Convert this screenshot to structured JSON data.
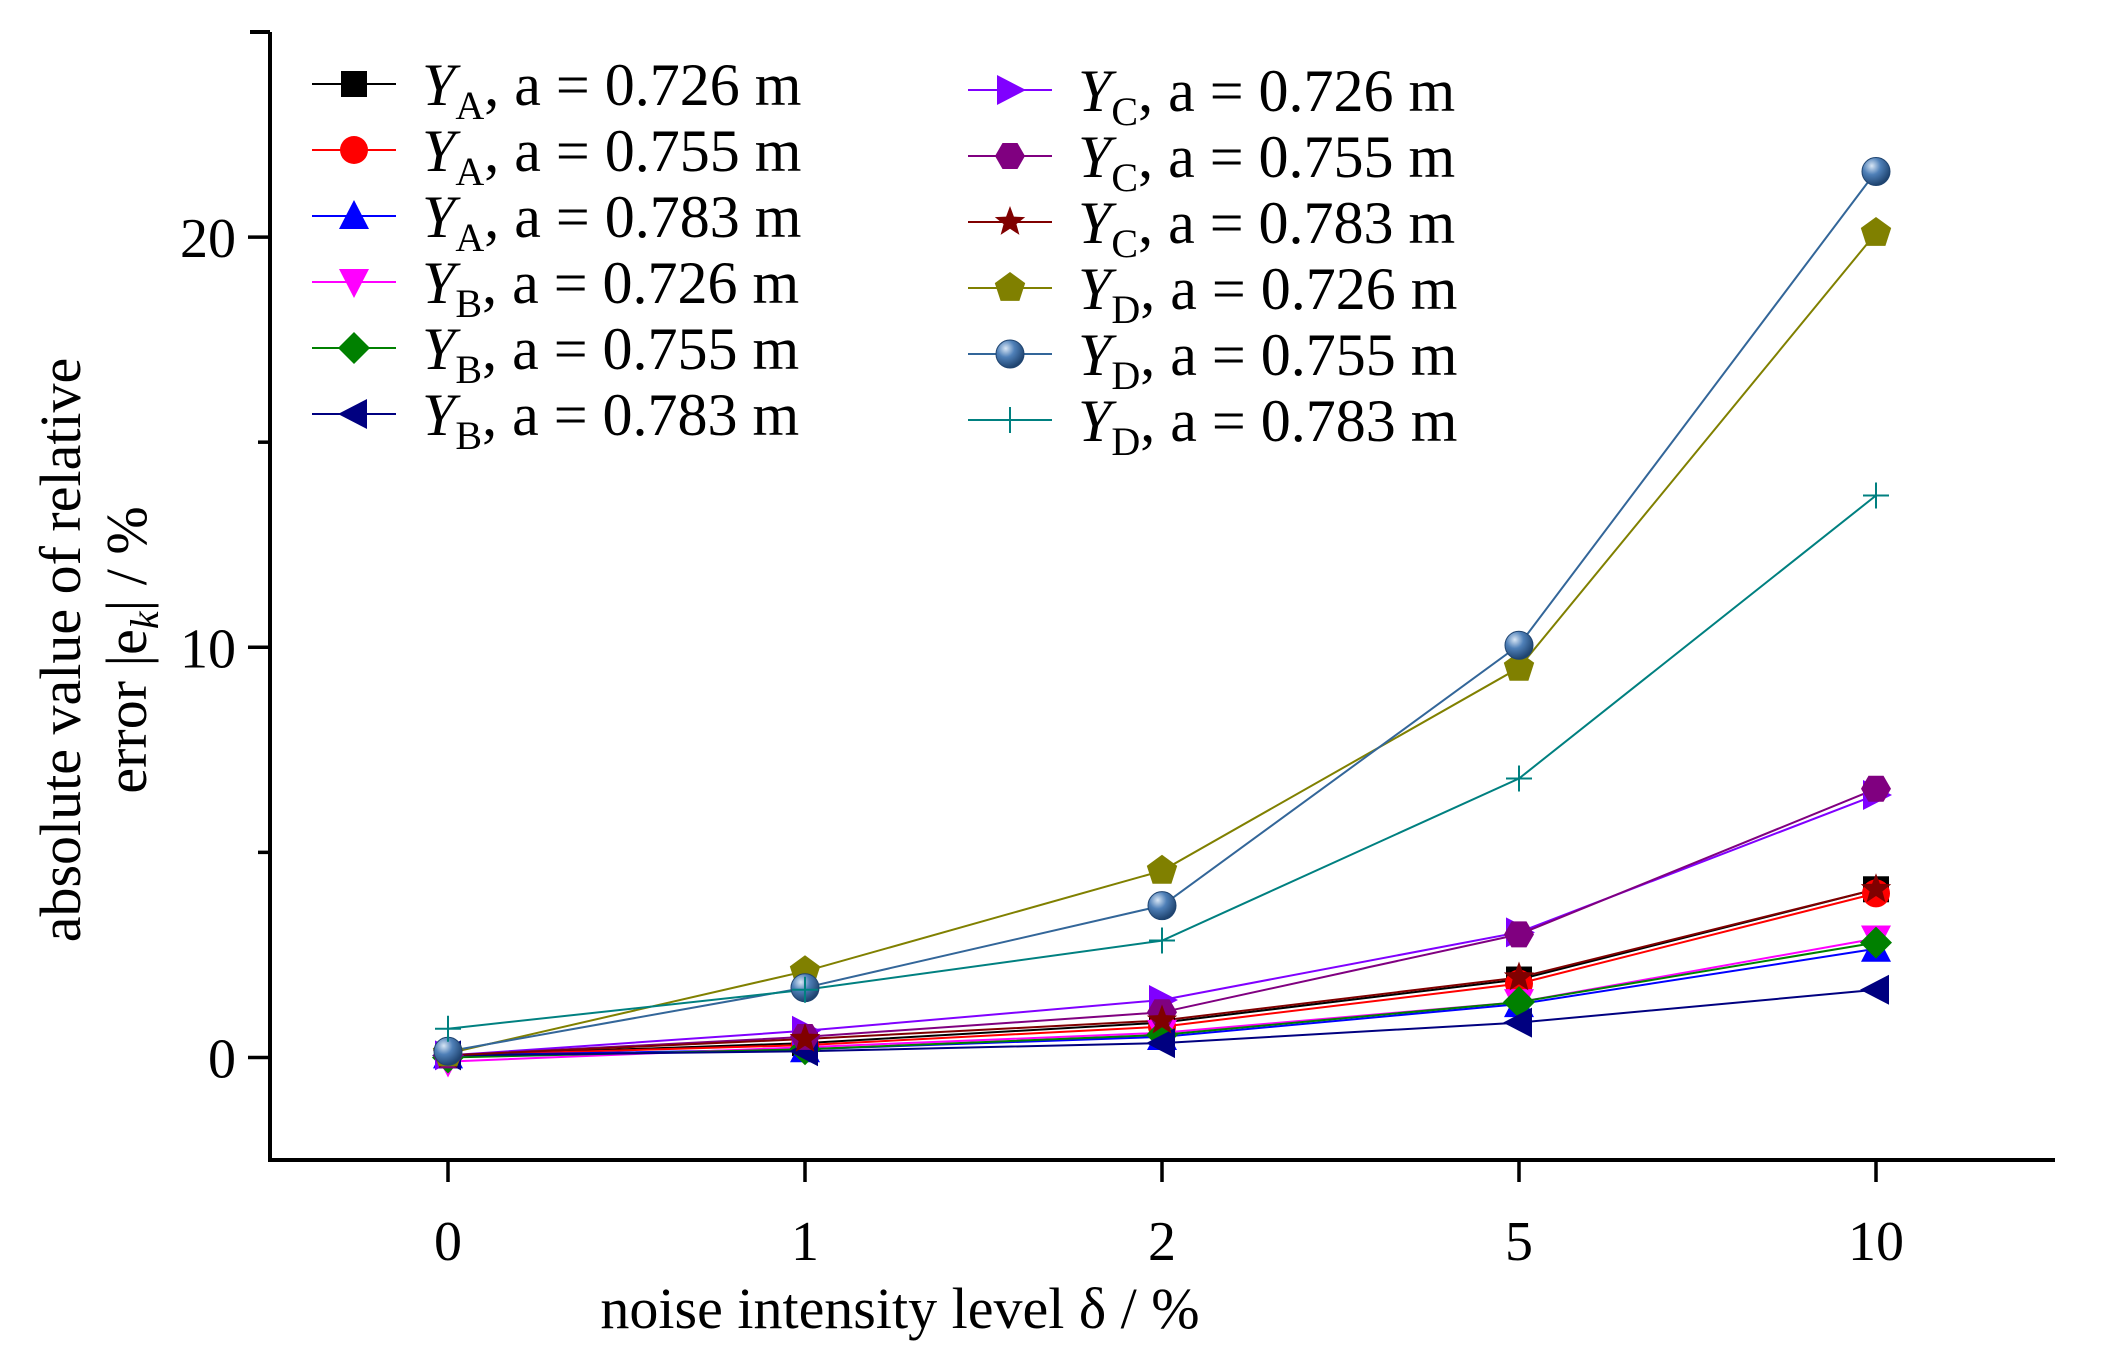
{
  "chart_data": {
    "type": "line",
    "xlabel": "noise intensity level δ / %",
    "ylabel_line1": "absolute value of relative",
    "ylabel_line2": "error |e",
    "ylabel_sub": "k",
    "ylabel_tail": "| / %",
    "categories": [
      "0",
      "1",
      "2",
      "5",
      "10"
    ],
    "ylim": [
      -2.5,
      25
    ],
    "yticks": [
      0,
      10,
      20
    ],
    "legend_placement": "top-left",
    "grid": false,
    "series": [
      {
        "name": "Y",
        "sub": "A",
        "param": ", a = 0.726 m",
        "color": "#000000",
        "marker": "square",
        "values": [
          0.05,
          0.35,
          0.85,
          1.9,
          4.1
        ]
      },
      {
        "name": "Y",
        "sub": "A",
        "param": ", a = 0.755 m",
        "color": "#ff0000",
        "marker": "circle",
        "values": [
          0.05,
          0.3,
          0.75,
          1.8,
          4.0
        ]
      },
      {
        "name": "Y",
        "sub": "A",
        "param": ", a = 0.783 m",
        "color": "#0000ff",
        "marker": "triangle-up",
        "values": [
          0.05,
          0.2,
          0.5,
          1.3,
          2.65
        ]
      },
      {
        "name": "Y",
        "sub": "B",
        "param": ", a = 0.726 m",
        "color": "#ff00ff",
        "marker": "triangle-down",
        "values": [
          -0.1,
          0.25,
          0.6,
          1.35,
          2.9
        ]
      },
      {
        "name": "Y",
        "sub": "B",
        "param": ", a = 0.755 m",
        "color": "#008000",
        "marker": "diamond",
        "values": [
          0.0,
          0.2,
          0.55,
          1.35,
          2.8
        ]
      },
      {
        "name": "Y",
        "sub": "B",
        "param": ", a = 0.783 m",
        "color": "#000080",
        "marker": "triangle-left",
        "values": [
          0.05,
          0.15,
          0.35,
          0.85,
          1.65
        ]
      },
      {
        "name": "Y",
        "sub": "C",
        "param": ", a = 0.726 m",
        "color": "#8000ff",
        "marker": "triangle-right",
        "values": [
          0.05,
          0.65,
          1.4,
          3.05,
          6.4
        ]
      },
      {
        "name": "Y",
        "sub": "C",
        "param": ", a = 0.755 m",
        "color": "#800080",
        "marker": "hexagon",
        "values": [
          0.05,
          0.5,
          1.1,
          3.0,
          6.55
        ]
      },
      {
        "name": "Y",
        "sub": "C",
        "param": ", a = 0.783 m",
        "color": "#800000",
        "marker": "star",
        "values": [
          0.05,
          0.45,
          0.9,
          1.95,
          4.1
        ]
      },
      {
        "name": "Y",
        "sub": "D",
        "param": ", a = 0.726 m",
        "color": "#808000",
        "marker": "pentagon",
        "values": [
          0.1,
          2.1,
          4.55,
          9.5,
          20.1
        ]
      },
      {
        "name": "Y",
        "sub": "D",
        "param": ", a = 0.755 m",
        "color": "#336699",
        "marker": "ball",
        "values": [
          0.15,
          1.7,
          3.7,
          10.05,
          21.6
        ]
      },
      {
        "name": "Y",
        "sub": "D",
        "param": ", a = 0.783 m",
        "color": "#008080",
        "marker": "plus",
        "values": [
          0.7,
          1.65,
          2.85,
          6.8,
          13.7
        ]
      }
    ]
  }
}
